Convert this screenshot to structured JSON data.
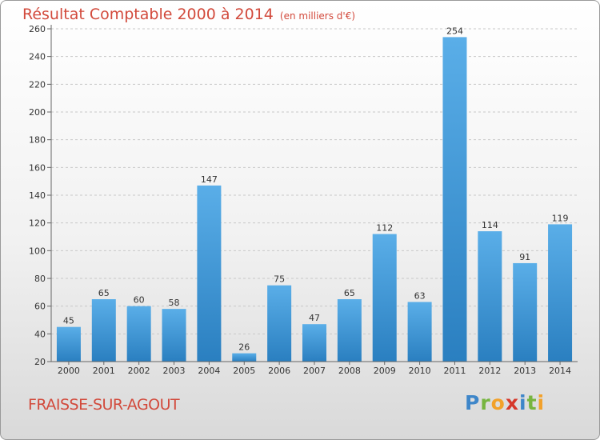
{
  "title": "Résultat Comptable 2000 à 2014",
  "subtitle": "(en milliers d'€)",
  "commune": "FRAISSE-SUR-AGOUT",
  "logo": {
    "letters": [
      "P",
      "r",
      "o",
      "x",
      "i",
      "t",
      "i"
    ],
    "colors": [
      "#3e86c9",
      "#77b540",
      "#f2a12a",
      "#d6382a",
      "#3e86c9",
      "#77b540",
      "#f2a12a"
    ]
  },
  "colors": {
    "title": "#d24a3c",
    "bar_light": "#5aaee8",
    "bar_dark": "#2a7fc0"
  },
  "chart_data": {
    "type": "bar",
    "title": "Résultat Comptable 2000 à 2014",
    "ylabel": "en milliers d'€",
    "xlabel": "",
    "categories": [
      "2000",
      "2001",
      "2002",
      "2003",
      "2004",
      "2005",
      "2006",
      "2007",
      "2008",
      "2009",
      "2010",
      "2011",
      "2012",
      "2013",
      "2014"
    ],
    "values": [
      45,
      65,
      60,
      58,
      147,
      26,
      75,
      47,
      65,
      112,
      63,
      254,
      114,
      91,
      119
    ],
    "ylim": [
      20,
      260
    ],
    "yticks": [
      "20",
      "40",
      "60",
      "80",
      "100",
      "120",
      "140",
      "160",
      "180",
      "200",
      "220",
      "240",
      "260"
    ],
    "grid": true
  }
}
